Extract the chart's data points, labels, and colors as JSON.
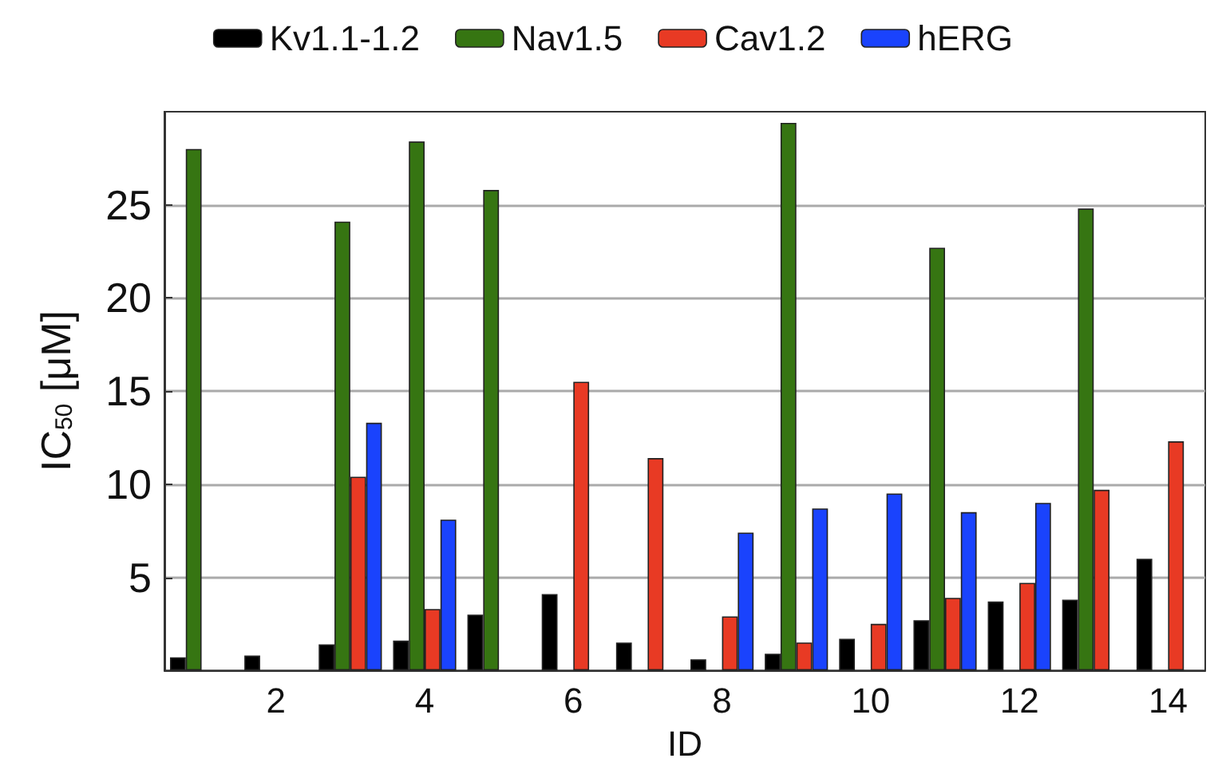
{
  "chart_data": {
    "type": "bar",
    "xlabel": "ID",
    "ylabel": "IC$_{50}$ [μM]",
    "categories": [
      null,
      "2",
      null,
      "4",
      null,
      "6",
      null,
      "8",
      null,
      "10",
      null,
      "12",
      null,
      "14"
    ],
    "series": [
      {
        "name": "Kv1.1-1.2",
        "color": "#000000",
        "values": [
          0.7,
          0.8,
          1.4,
          1.6,
          3.0,
          4.1,
          1.5,
          0.6,
          0.9,
          1.7,
          2.7,
          3.7,
          3.8,
          6.0
        ]
      },
      {
        "name": "Nav1.5",
        "color": "#367512",
        "values": [
          28,
          null,
          24.1,
          28.4,
          25.8,
          null,
          null,
          null,
          29.4,
          null,
          22.7,
          null,
          24.8,
          null
        ]
      },
      {
        "name": "Cav1.2",
        "color": "#e83a24",
        "values": [
          null,
          null,
          10.4,
          3.3,
          null,
          15.5,
          11.4,
          2.9,
          1.5,
          2.5,
          3.9,
          4.7,
          9.7,
          12.3
        ]
      },
      {
        "name": "hERG",
        "color": "#1a43fd",
        "values": [
          null,
          null,
          13.3,
          8.1,
          null,
          null,
          null,
          7.4,
          8.7,
          9.5,
          8.5,
          9.0,
          null,
          null
        ]
      }
    ],
    "ylim": [
      0,
      30
    ],
    "yticks": [
      5,
      10,
      15,
      20,
      25
    ],
    "grid": "y",
    "legend": "top"
  }
}
